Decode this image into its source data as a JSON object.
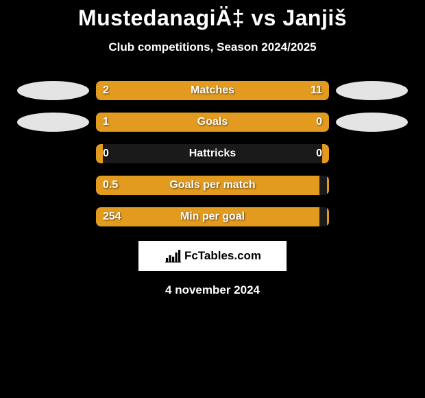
{
  "title": "MustedanagiÄ‡ vs Janjiš",
  "subtitle": "Club competitions, Season 2024/2025",
  "date": "4 november 2024",
  "brand": "FcTables.com",
  "colors": {
    "background": "#000000",
    "track": "#1a1a1a",
    "left_oval": "#e4e4e4",
    "right_oval": "#e4e4e4",
    "left_fill": "#e39b1f",
    "right_fill": "#e39b1f",
    "text": "#ffffff",
    "brand_box": "#ffffff",
    "brand_text": "#000000"
  },
  "rows": [
    {
      "label": "Matches",
      "left_value": "2",
      "right_value": "11",
      "left_pct": 18,
      "right_pct": 82,
      "show_ovals": true
    },
    {
      "label": "Goals",
      "left_value": "1",
      "right_value": "0",
      "left_pct": 78,
      "right_pct": 22,
      "show_ovals": true
    },
    {
      "label": "Hattricks",
      "left_value": "0",
      "right_value": "0",
      "left_pct": 3,
      "right_pct": 3,
      "show_ovals": false
    },
    {
      "label": "Goals per match",
      "left_value": "0.5",
      "right_value": "",
      "left_pct": 96,
      "right_pct": 1,
      "show_ovals": false
    },
    {
      "label": "Min per goal",
      "left_value": "254",
      "right_value": "",
      "left_pct": 96,
      "right_pct": 1,
      "show_ovals": false
    }
  ]
}
